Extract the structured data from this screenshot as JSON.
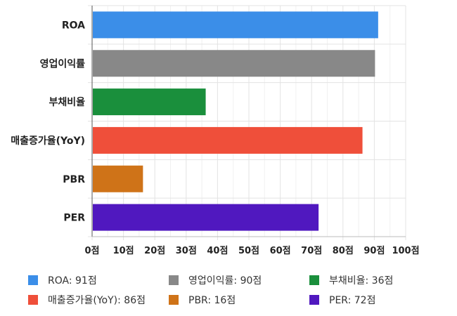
{
  "chart_data": {
    "type": "bar",
    "orientation": "horizontal",
    "categories": [
      "ROA",
      "영업이익률",
      "부채비율",
      "매출증가율(YoY)",
      "PBR",
      "PER"
    ],
    "values": [
      91,
      90,
      36,
      86,
      16,
      72
    ],
    "colors": [
      "#3b8ee8",
      "#888888",
      "#1a8f3c",
      "#ef4f3a",
      "#cf7318",
      "#5018bf"
    ],
    "tick_values": [
      0,
      10,
      20,
      30,
      40,
      50,
      60,
      70,
      80,
      90,
      100
    ],
    "tick_labels": [
      "0점",
      "10점",
      "20점",
      "30점",
      "40점",
      "50점",
      "60점",
      "70점",
      "80점",
      "90점",
      "100점"
    ],
    "xlim": [
      0,
      100
    ],
    "grid": true,
    "legend_position": "bottom",
    "legend": [
      {
        "label": "ROA: 91점",
        "color": "#3b8ee8"
      },
      {
        "label": "영업이익률: 90점",
        "color": "#888888"
      },
      {
        "label": "부채비율: 36점",
        "color": "#1a8f3c"
      },
      {
        "label": "매출증가율(YoY): 86점",
        "color": "#ef4f3a"
      },
      {
        "label": "PBR: 16점",
        "color": "#cf7318"
      },
      {
        "label": "PER: 72점",
        "color": "#5018bf"
      }
    ]
  }
}
